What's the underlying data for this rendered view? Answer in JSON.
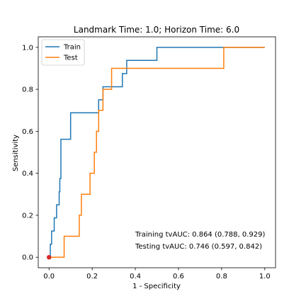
{
  "chart_data": {
    "type": "line",
    "title": "Landmark Time: 1.0; Horizon Time: 6.0",
    "xlabel": "1 - Specificity",
    "ylabel": "Sensitivity",
    "xlim": [
      -0.05,
      1.05
    ],
    "ylim": [
      -0.05,
      1.05
    ],
    "xticks": [
      "0.0",
      "0.2",
      "0.4",
      "0.6",
      "0.8",
      "1.0"
    ],
    "yticks": [
      "0.0",
      "0.2",
      "0.4",
      "0.6",
      "0.8",
      "1.0"
    ],
    "grid": false,
    "legend": "upper-left",
    "series": [
      {
        "name": "Train",
        "color": "#1f77b4",
        "step": true,
        "x": [
          0.0,
          0.006,
          0.012,
          0.024,
          0.035,
          0.047,
          0.05,
          0.055,
          0.065,
          0.1,
          0.23,
          0.25,
          0.34,
          0.36,
          0.5,
          0.81,
          1.0
        ],
        "y": [
          0.0,
          0.062,
          0.125,
          0.188,
          0.25,
          0.312,
          0.375,
          0.562,
          0.562,
          0.688,
          0.75,
          0.812,
          0.875,
          0.938,
          1.0,
          1.0,
          1.0
        ]
      },
      {
        "name": "Test",
        "color": "#ff7f0e",
        "step": true,
        "x": [
          0.0,
          0.07,
          0.14,
          0.15,
          0.19,
          0.21,
          0.22,
          0.23,
          0.25,
          0.29,
          0.81,
          1.0
        ],
        "y": [
          0.0,
          0.1,
          0.2,
          0.3,
          0.4,
          0.5,
          0.6,
          0.7,
          0.8,
          0.9,
          1.0,
          1.0
        ]
      }
    ],
    "marker": {
      "x": 0.0,
      "y": 0.0,
      "color": "#d62728"
    },
    "annotations": [
      "Training tvAUC: 0.864 (0.788, 0.929)",
      "Testing tvAUC: 0.746 (0.597, 0.842)"
    ]
  }
}
